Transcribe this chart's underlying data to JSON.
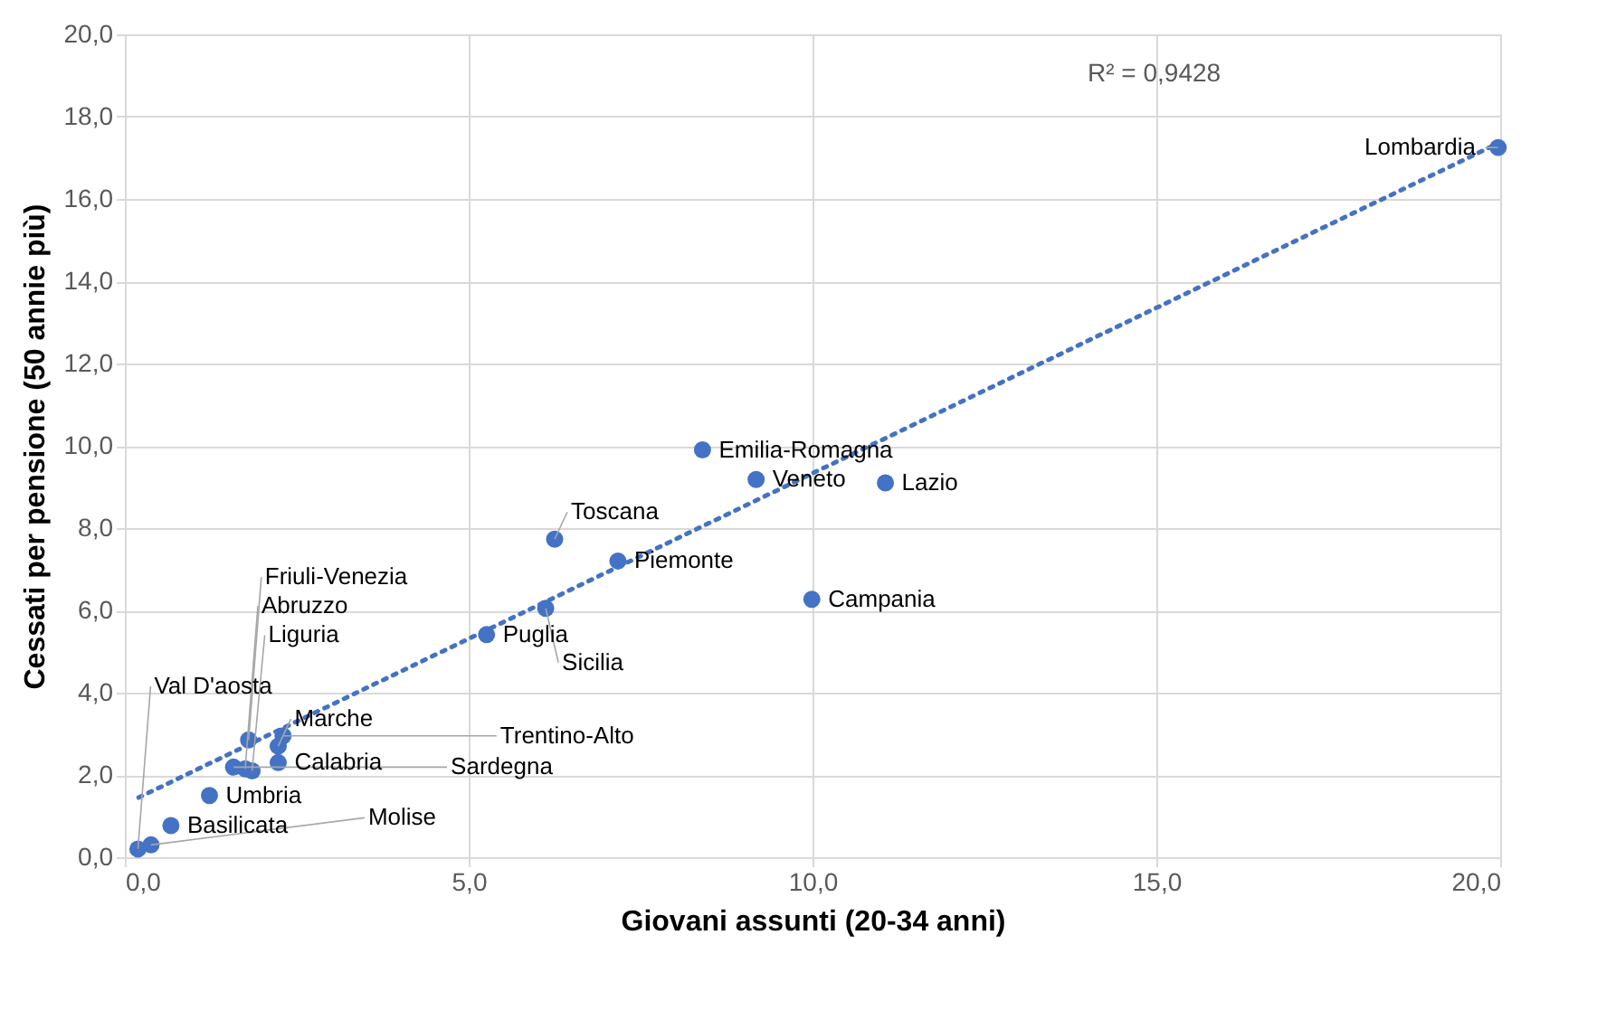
{
  "chart_data": {
    "type": "scatter",
    "xlabel": "Giovani assunti (20-34 anni)",
    "ylabel": "Cessati per pensione (50 annie più)",
    "x": [
      19.97,
      8.4,
      9.18,
      11.06,
      6.25,
      7.17,
      9.99,
      6.12,
      5.26,
      1.8,
      2.3,
      2.23,
      2.23,
      1.58,
      1.75,
      1.85,
      1.23,
      0.67,
      0.38,
      0.19
    ],
    "series": [
      {
        "color": "#4472c4",
        "marker": "circle",
        "values": [
          17.25,
          9.9,
          9.18,
          9.1,
          7.73,
          7.2,
          6.27,
          6.05,
          5.41,
          2.85,
          2.95,
          2.7,
          2.3,
          2.19,
          2.15,
          2.1,
          1.5,
          0.77,
          0.3,
          0.2
        ]
      },
      {
        "type": "line",
        "color": "#4472c4",
        "marker": "none",
        "line_style": "dotted",
        "x": [
          0.2,
          19.97
        ],
        "values": [
          1.45,
          17.35
        ]
      }
    ],
    "annotations": [
      {
        "text": "Lombardia",
        "x": 19.97,
        "y": 17.25
      },
      {
        "text": "Emilia-Romagna",
        "x": 8.4,
        "y": 9.9
      },
      {
        "text": "Veneto",
        "x": 9.18,
        "y": 9.18
      },
      {
        "text": "Lazio",
        "x": 11.06,
        "y": 9.1
      },
      {
        "text": "Toscana",
        "x": 6.25,
        "y": 7.73
      },
      {
        "text": "Piemonte",
        "x": 7.17,
        "y": 7.2
      },
      {
        "text": "Campania",
        "x": 9.99,
        "y": 6.27
      },
      {
        "text": "Sicilia",
        "x": 6.12,
        "y": 6.05
      },
      {
        "text": "Puglia",
        "x": 5.26,
        "y": 5.41
      },
      {
        "text": "Friuli-Venezia",
        "x": 1.8,
        "y": 2.85
      },
      {
        "text": "Trentino-Alto",
        "x": 2.3,
        "y": 2.95
      },
      {
        "text": "Marche",
        "x": 2.23,
        "y": 2.7
      },
      {
        "text": "Calabria",
        "x": 2.23,
        "y": 2.3
      },
      {
        "text": "Sardegna",
        "x": 1.58,
        "y": 2.19
      },
      {
        "text": "Abruzzo",
        "x": 1.75,
        "y": 2.15
      },
      {
        "text": "Liguria",
        "x": 1.85,
        "y": 2.1
      },
      {
        "text": "Umbria",
        "x": 1.23,
        "y": 1.5
      },
      {
        "text": "Basilicata",
        "x": 0.67,
        "y": 0.77
      },
      {
        "text": "Molise",
        "x": 0.38,
        "y": 0.3
      },
      {
        "text": "Val D'aosta",
        "x": 0.19,
        "y": 0.2
      },
      "R² = 0,9428"
    ],
    "xlim": [
      0,
      20
    ],
    "xticks": [
      {
        "value": 0,
        "label": "0,0"
      },
      {
        "value": 5,
        "label": "5,0"
      },
      {
        "value": 10,
        "label": "10,0"
      },
      {
        "value": 15,
        "label": "15,0"
      },
      {
        "value": 20,
        "label": "20,0"
      }
    ],
    "ylim": [
      0,
      20
    ],
    "yticks": [
      {
        "value": 0,
        "label": "0,0"
      },
      {
        "value": 2,
        "label": "2,0"
      },
      {
        "value": 4,
        "label": "4,0"
      },
      {
        "value": 6,
        "label": "6,0"
      },
      {
        "value": 8,
        "label": "8,0"
      },
      {
        "value": 10,
        "label": "10,0"
      },
      {
        "value": 12,
        "label": "12,0"
      },
      {
        "value": 14,
        "label": "14,0"
      },
      {
        "value": 16,
        "label": "16,0"
      },
      {
        "value": 18,
        "label": "18,0"
      },
      {
        "value": 20,
        "label": "20,0"
      }
    ],
    "grid": true
  }
}
